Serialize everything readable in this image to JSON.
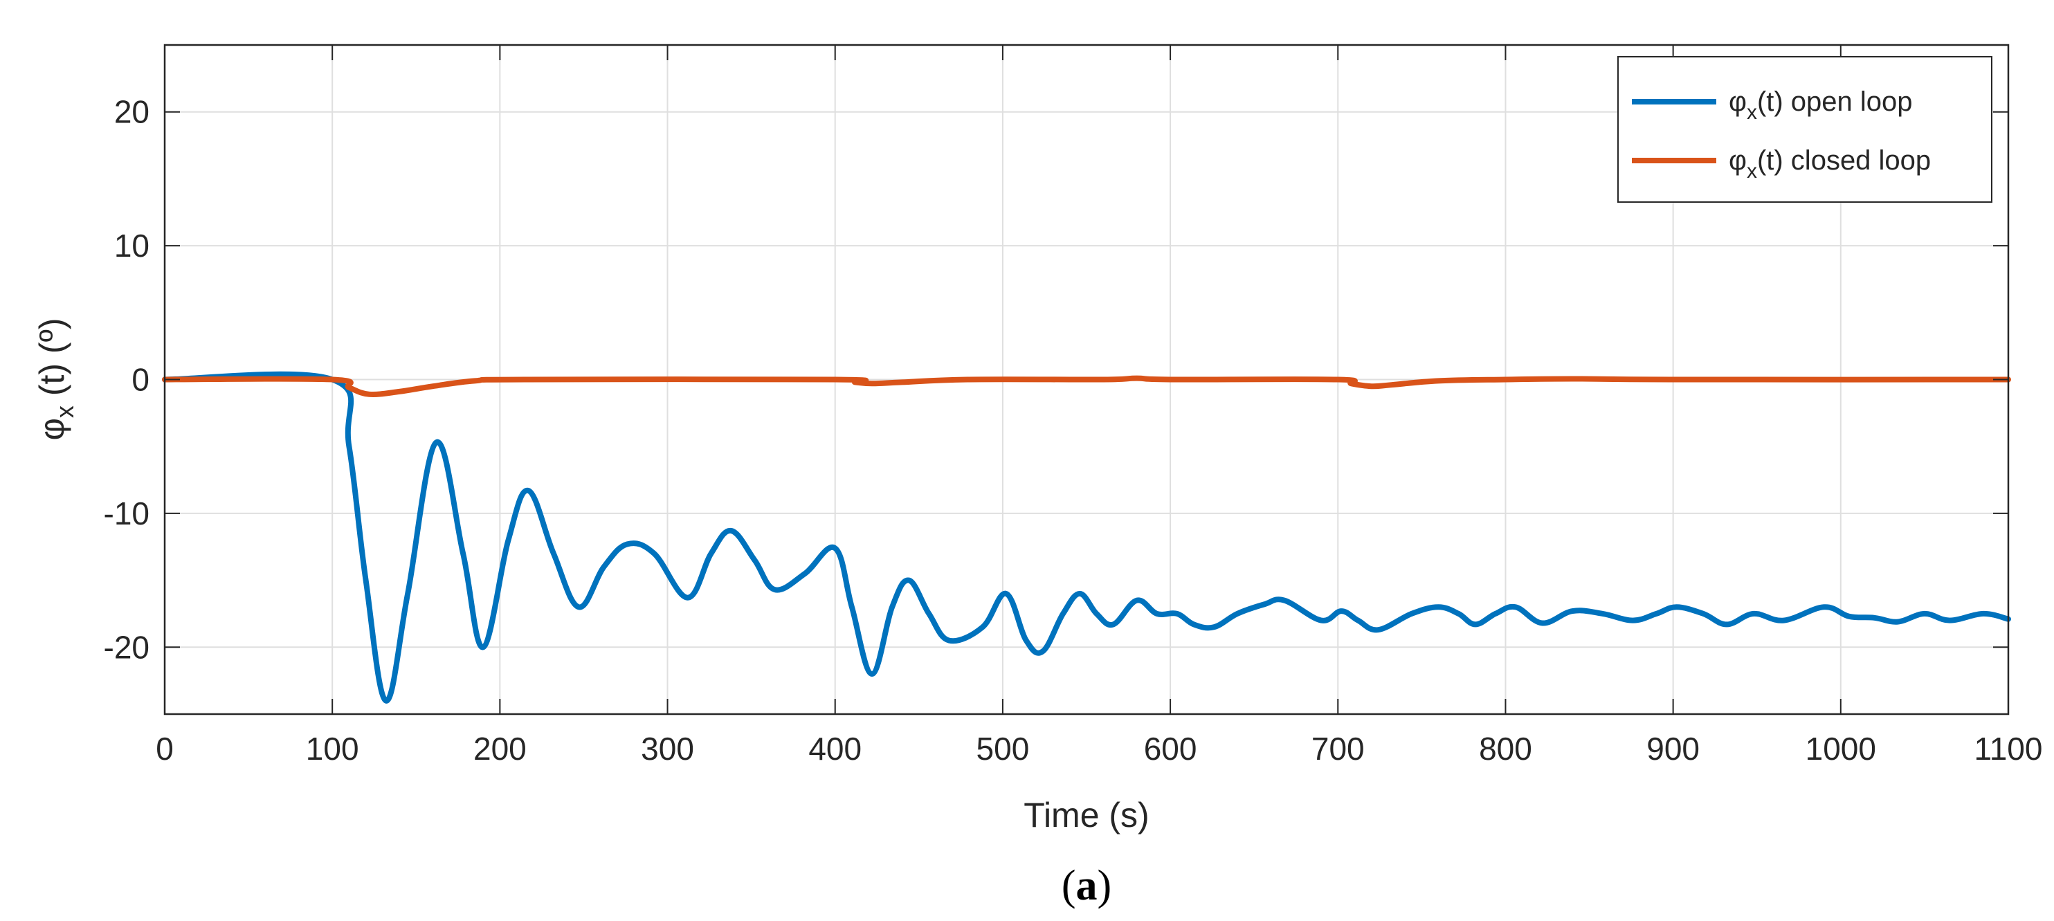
{
  "chart_data": {
    "type": "line",
    "title": "",
    "xlabel": "Time (s)",
    "ylabel_main": "φ",
    "ylabel_sub": "x",
    "ylabel_rest": " (t)  (º)",
    "xlim": [
      0,
      1100
    ],
    "ylim": [
      -25,
      25
    ],
    "xticks": [
      0,
      100,
      200,
      300,
      400,
      500,
      600,
      700,
      800,
      900,
      1000,
      1100
    ],
    "yticks": [
      -20,
      -10,
      0,
      10,
      20
    ],
    "grid": true,
    "legend_position": "top-right",
    "series": [
      {
        "name": "φx(t) open loop",
        "legend_main": "φ",
        "legend_sub": "x",
        "legend_rest": "(t) open loop",
        "color": "#0072BD",
        "x": [
          0,
          100,
          110,
          120,
          132,
          145,
          162,
          178,
          190,
          205,
          217,
          232,
          247,
          262,
          276,
          292,
          312,
          326,
          338,
          352,
          364,
          382,
          400,
          410,
          422,
          434,
          444,
          456,
          468,
          488,
          502,
          514,
          524,
          536,
          546,
          556,
          566,
          580,
          592,
          604,
          614,
          626,
          640,
          656,
          668,
          690,
          702,
          712,
          724,
          744,
          760,
          772,
          782,
          794,
          806,
          822,
          840,
          858,
          876,
          890,
          902,
          918,
          932,
          948,
          966,
          990,
          1005,
          1020,
          1034,
          1050,
          1065,
          1085,
          1100
        ],
        "values": [
          0,
          0,
          -5,
          -15,
          -24,
          -16,
          -4.7,
          -13,
          -20,
          -12,
          -8.3,
          -13,
          -17,
          -14,
          -12.3,
          -13,
          -16.3,
          -13,
          -11.3,
          -13.5,
          -15.7,
          -14.5,
          -12.6,
          -17,
          -22,
          -17,
          -15,
          -17.5,
          -19.5,
          -18.5,
          -16,
          -19.5,
          -20.3,
          -17.5,
          -16,
          -17.5,
          -18.3,
          -16.5,
          -17.5,
          -17.5,
          -18.3,
          -18.5,
          -17.5,
          -16.8,
          -16.5,
          -18,
          -17.3,
          -18,
          -18.7,
          -17.5,
          -17,
          -17.5,
          -18.3,
          -17.5,
          -17,
          -18.2,
          -17.3,
          -17.5,
          -18,
          -17.5,
          -17,
          -17.5,
          -18.3,
          -17.5,
          -18,
          -17,
          -17.7,
          -17.8,
          -18.1,
          -17.5,
          -18,
          -17.5,
          -17.9
        ]
      },
      {
        "name": "φx(t) closed loop",
        "legend_main": "φ",
        "legend_sub": "x",
        "legend_rest": "(t) closed loop",
        "color": "#D95319",
        "x": [
          0,
          100,
          110,
          122,
          140,
          160,
          185,
          215,
          400,
          412,
          422,
          440,
          480,
          560,
          580,
          600,
          700,
          708,
          720,
          732,
          760,
          800,
          840,
          900,
          1100
        ],
        "values": [
          0,
          0,
          -0.6,
          -1.1,
          -0.9,
          -0.5,
          -0.1,
          0,
          0,
          -0.2,
          -0.3,
          -0.2,
          0,
          0,
          0.1,
          0,
          0,
          -0.3,
          -0.5,
          -0.4,
          -0.1,
          0,
          0.05,
          0,
          0
        ]
      }
    ]
  },
  "caption": {
    "open": "(",
    "letter": "a",
    "close": ")"
  }
}
